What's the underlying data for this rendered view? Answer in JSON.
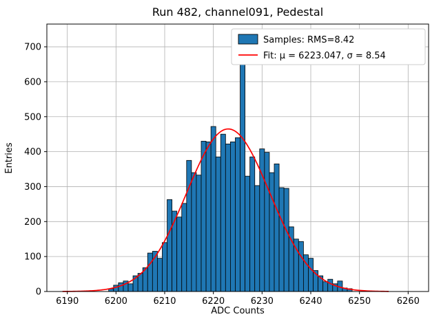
{
  "chart_data": {
    "type": "bar",
    "title": "Run 482, channel091, Pedestal",
    "xlabel": "ADC Counts",
    "ylabel": "Entries",
    "xlim": [
      6185.8,
      6264.2
    ],
    "ylim": [
      0,
      765
    ],
    "xticks": [
      6190,
      6200,
      6210,
      6220,
      6230,
      6240,
      6250,
      6260
    ],
    "yticks": [
      0,
      100,
      200,
      300,
      400,
      500,
      600,
      700
    ],
    "grid": true,
    "legend": {
      "samples": "Samples: RMS=8.42",
      "fit": "Fit: μ = 6223.047, σ = 8.54"
    },
    "legend_position": "upper right",
    "bin_width": 1,
    "bin_centers": [
      6199,
      6200,
      6201,
      6202,
      6203,
      6204,
      6205,
      6206,
      6207,
      6208,
      6209,
      6210,
      6211,
      6212,
      6213,
      6214,
      6215,
      6216,
      6217,
      6218,
      6219,
      6220,
      6221,
      6222,
      6223,
      6224,
      6225,
      6226,
      6227,
      6228,
      6229,
      6230,
      6231,
      6232,
      6233,
      6234,
      6235,
      6236,
      6237,
      6238,
      6239,
      6240,
      6241,
      6242,
      6243,
      6244,
      6245,
      6246,
      6247,
      6248
    ],
    "counts": [
      8,
      18,
      25,
      30,
      22,
      45,
      52,
      68,
      110,
      115,
      95,
      140,
      263,
      230,
      213,
      252,
      375,
      340,
      333,
      430,
      428,
      472,
      385,
      450,
      422,
      428,
      440,
      680,
      330,
      385,
      303,
      408,
      398,
      340,
      365,
      297,
      295,
      185,
      150,
      143,
      105,
      95,
      60,
      45,
      28,
      35,
      22,
      30,
      10,
      8
    ],
    "fit": {
      "mu": 6223.047,
      "sigma": 8.54,
      "amplitude": 465,
      "range": [
        6189,
        6256
      ]
    },
    "colors": {
      "bar_fill": "#1f77b4",
      "bar_edge": "#000000",
      "fit_line": "#ff0000",
      "grid": "#b0b0b0",
      "axes_edge": "#000000",
      "legend_edge": "#cccccc",
      "background": "#ffffff"
    }
  }
}
